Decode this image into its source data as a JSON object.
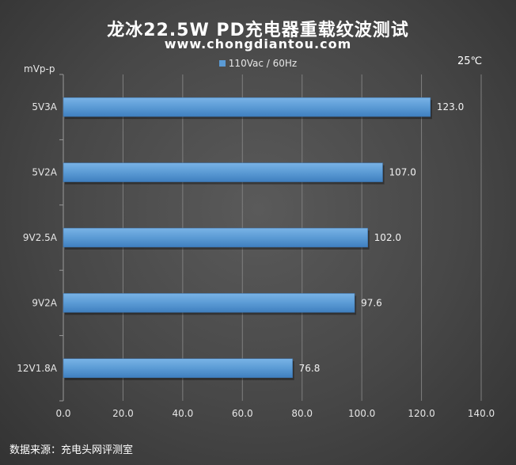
{
  "chart_data": {
    "type": "bar",
    "orientation": "horizontal",
    "title": "龙冰22.5W PD充电器重载纹波测试",
    "subtitle": "www.chongdiantou.com",
    "ylabel": "mVp-p",
    "corner_note": "25℃",
    "source": "数据来源：充电头网评测室",
    "categories": [
      "5V3A",
      "5V2A",
      "9V2.5A",
      "9V2A",
      "12V1.8A"
    ],
    "series": [
      {
        "name": "110Vac / 60Hz",
        "values": [
          123.0,
          107.0,
          102.0,
          97.6,
          76.8
        ],
        "value_labels": [
          "123.0",
          "107.0",
          "102.0",
          "97.6",
          "76.8"
        ],
        "color": "#5b9bd5"
      }
    ],
    "xlim": [
      0,
      140
    ],
    "xticks": [
      "0.0",
      "20.0",
      "40.0",
      "60.0",
      "80.0",
      "100.0",
      "120.0",
      "140.0"
    ],
    "grid": true,
    "legend_position": "top-center",
    "background_color": "#474747",
    "gridline_color": "#7f7f7f"
  }
}
